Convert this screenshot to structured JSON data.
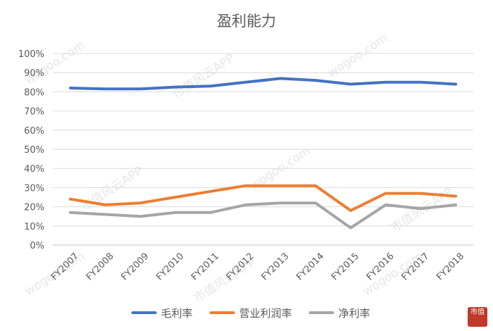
{
  "chart_data": {
    "type": "line",
    "title": "盈利能力",
    "xlabel": "",
    "ylabel": "",
    "categories": [
      "FY2007",
      "FY2008",
      "FY2009",
      "FY2010",
      "FY2011",
      "FY2012",
      "FY2013",
      "FY2014",
      "FY2015",
      "FY2016",
      "FY2017",
      "FY2018"
    ],
    "y_ticks": [
      "0%",
      "10%",
      "20%",
      "30%",
      "40%",
      "50%",
      "60%",
      "70%",
      "80%",
      "90%",
      "100%"
    ],
    "ylim": [
      0,
      100
    ],
    "grid": true,
    "legend_position": "bottom",
    "series": [
      {
        "name": "毛利率",
        "color": "#4472c4",
        "values": [
          82,
          81.5,
          81.5,
          82.5,
          83,
          85,
          87,
          86,
          84,
          85,
          85,
          84
        ]
      },
      {
        "name": "营业利润率",
        "color": "#ed7d31",
        "values": [
          24,
          21,
          22,
          25,
          28,
          31,
          31,
          31,
          18,
          27,
          27,
          25.5
        ]
      },
      {
        "name": "净利率",
        "color": "#a5a5a5",
        "values": [
          17,
          16,
          15,
          17,
          17,
          21,
          22,
          22,
          9,
          21,
          19,
          21
        ]
      }
    ]
  },
  "watermark": {
    "text": "市值风云APP",
    "url_text": "wogoo.com"
  },
  "seal_text": "市值"
}
